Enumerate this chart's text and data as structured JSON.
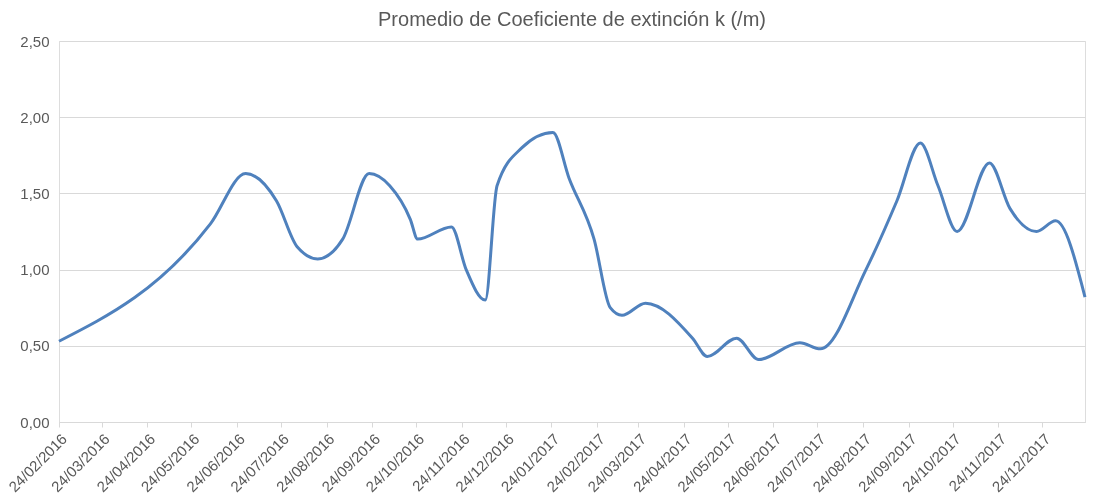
{
  "chart_data": {
    "type": "line",
    "title": "Promedio de Coeficiente de extinción k (/m)",
    "x": [
      "2016-02-24",
      "2016-06-06",
      "2016-06-30",
      "2016-07-21",
      "2016-08-04",
      "2016-08-18",
      "2016-09-04",
      "2016-09-22",
      "2016-10-06",
      "2016-10-20",
      "2016-10-25",
      "2016-11-17",
      "2016-11-27",
      "2016-12-10",
      "2016-12-18",
      "2017-01-04",
      "2017-01-25",
      "2017-02-05",
      "2017-02-22",
      "2017-03-05",
      "2017-03-13",
      "2017-03-29",
      "2017-04-30",
      "2017-05-10",
      "2017-05-30",
      "2017-06-14",
      "2017-07-12",
      "2017-07-26",
      "2017-08-26",
      "2017-09-16",
      "2017-10-02",
      "2017-10-14",
      "2017-10-27",
      "2017-11-18",
      "2017-12-02",
      "2017-12-20",
      "2018-01-02",
      "2018-01-22"
    ],
    "series": [
      {
        "color": "#4f81bd",
        "values": [
          0.53,
          1.3,
          1.63,
          1.45,
          1.15,
          1.07,
          1.2,
          1.63,
          1.55,
          1.33,
          1.2,
          1.28,
          1.0,
          0.8,
          1.55,
          1.8,
          1.9,
          1.6,
          1.2,
          0.75,
          0.7,
          0.78,
          0.55,
          0.43,
          0.55,
          0.41,
          0.52,
          0.48,
          1.0,
          1.45,
          1.83,
          1.55,
          1.25,
          1.7,
          1.4,
          1.25,
          1.32,
          0.82
        ]
      }
    ],
    "xlim": [
      "2016-02-24",
      "2018-01-22"
    ],
    "xticks": [
      {
        "value": "2016-02-24",
        "label": "24/02/2016"
      },
      {
        "value": "2016-03-24",
        "label": "24/03/2016"
      },
      {
        "value": "2016-04-24",
        "label": "24/04/2016"
      },
      {
        "value": "2016-05-24",
        "label": "24/05/2016"
      },
      {
        "value": "2016-06-24",
        "label": "24/06/2016"
      },
      {
        "value": "2016-07-24",
        "label": "24/07/2016"
      },
      {
        "value": "2016-08-24",
        "label": "24/08/2016"
      },
      {
        "value": "2016-09-24",
        "label": "24/09/2016"
      },
      {
        "value": "2016-10-24",
        "label": "24/10/2016"
      },
      {
        "value": "2016-11-24",
        "label": "24/11/2016"
      },
      {
        "value": "2016-12-24",
        "label": "24/12/2016"
      },
      {
        "value": "2017-01-24",
        "label": "24/01/2017"
      },
      {
        "value": "2017-02-24",
        "label": "24/02/2017"
      },
      {
        "value": "2017-03-24",
        "label": "24/03/2017"
      },
      {
        "value": "2017-04-24",
        "label": "24/04/2017"
      },
      {
        "value": "2017-05-24",
        "label": "24/05/2017"
      },
      {
        "value": "2017-06-24",
        "label": "24/06/2017"
      },
      {
        "value": "2017-07-24",
        "label": "24/07/2017"
      },
      {
        "value": "2017-08-24",
        "label": "24/08/2017"
      },
      {
        "value": "2017-09-24",
        "label": "24/09/2017"
      },
      {
        "value": "2017-10-24",
        "label": "24/10/2017"
      },
      {
        "value": "2017-11-24",
        "label": "24/11/2017"
      },
      {
        "value": "2017-12-24",
        "label": "24/12/2017"
      }
    ],
    "ylim": [
      0,
      2.5
    ],
    "yticks": [
      {
        "value": 0,
        "label": "0,00"
      },
      {
        "value": 0.5,
        "label": "0,50"
      },
      {
        "value": 1,
        "label": "1,00"
      },
      {
        "value": 1.5,
        "label": "1,50"
      },
      {
        "value": 2,
        "label": "2,00"
      },
      {
        "value": 2.5,
        "label": "2,50"
      }
    ],
    "grid": "y",
    "legend": false,
    "marker": "none",
    "line_style": "solid"
  }
}
